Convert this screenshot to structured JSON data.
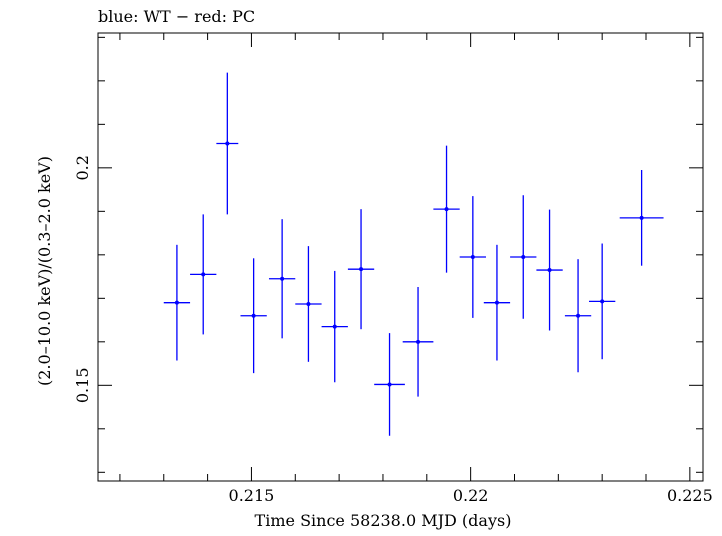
{
  "chart_data": {
    "type": "scatter",
    "title": "blue: WT − red: PC",
    "xlabel": "Time Since 58238.0 MJD (days)",
    "ylabel": "(2.0–10.0 keV)/(0.3–2.0 keV)",
    "xlim": [
      0.2115,
      0.2253
    ],
    "ylim": [
      0.128,
      0.231
    ],
    "xticks": [
      0.215,
      0.22,
      0.225
    ],
    "xtick_labels": [
      "0.215",
      "0.22",
      "0.225"
    ],
    "yticks": [
      0.15,
      0.2
    ],
    "ytick_labels": [
      "0.15",
      "0.2"
    ],
    "grid": false,
    "series": [
      {
        "color": "#0000ff",
        "points": [
          {
            "x": 0.2133,
            "xerr": 0.0003,
            "y": 0.169,
            "yerr": 0.0133
          },
          {
            "x": 0.2139,
            "xerr": 0.0003,
            "y": 0.1755,
            "yerr": 0.0138
          },
          {
            "x": 0.21445,
            "xerr": 0.00025,
            "y": 0.2056,
            "yerr": 0.0163
          },
          {
            "x": 0.2157,
            "xerr": 0.0003,
            "y": 0.1745,
            "yerr": 0.0137
          },
          {
            "x": 0.21505,
            "xerr": 0.0003,
            "y": 0.166,
            "yerr": 0.0132
          },
          {
            "x": 0.2163,
            "xerr": 0.0003,
            "y": 0.1687,
            "yerr": 0.0133
          },
          {
            "x": 0.2169,
            "xerr": 0.0003,
            "y": 0.1635,
            "yerr": 0.0128
          },
          {
            "x": 0.2175,
            "xerr": 0.0003,
            "y": 0.1767,
            "yerr": 0.0138
          },
          {
            "x": 0.21815,
            "xerr": 0.00035,
            "y": 0.1502,
            "yerr": 0.0118
          },
          {
            "x": 0.2188,
            "xerr": 0.00035,
            "y": 0.16,
            "yerr": 0.0126
          },
          {
            "x": 0.21945,
            "xerr": 0.0003,
            "y": 0.1905,
            "yerr": 0.0146
          },
          {
            "x": 0.22005,
            "xerr": 0.0003,
            "y": 0.1795,
            "yerr": 0.014
          },
          {
            "x": 0.2206,
            "xerr": 0.0003,
            "y": 0.169,
            "yerr": 0.0133
          },
          {
            "x": 0.2212,
            "xerr": 0.0003,
            "y": 0.1795,
            "yerr": 0.0142
          },
          {
            "x": 0.2218,
            "xerr": 0.0003,
            "y": 0.1765,
            "yerr": 0.0139
          },
          {
            "x": 0.22245,
            "xerr": 0.0003,
            "y": 0.166,
            "yerr": 0.013
          },
          {
            "x": 0.223,
            "xerr": 0.0003,
            "y": 0.1693,
            "yerr": 0.0133
          },
          {
            "x": 0.2239,
            "xerr": 0.0005,
            "y": 0.1885,
            "yerr": 0.011
          }
        ]
      }
    ]
  }
}
